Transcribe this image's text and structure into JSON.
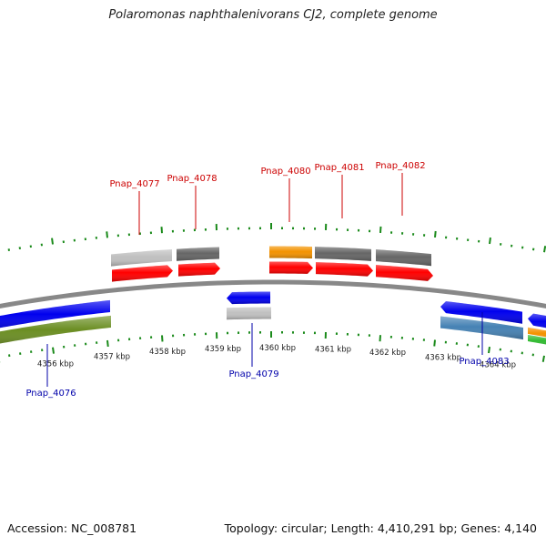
{
  "title": "Polaromonas naphthalenivorans CJ2, complete genome",
  "footer": {
    "accession": "Accession: NC_008781",
    "topology": "Topology: circular; Length: 4,410,291 bp; Genes: 4,140"
  },
  "colors": {
    "backbone": "#888888",
    "tick": "#1a8a1a",
    "label_forward": "#cc0000",
    "label_reverse": "#0000aa",
    "red": "#ff0000",
    "gray_dark": "#666666",
    "gray_light": "#c0c0c0",
    "orange": "#f39200",
    "blue": "#0000ee",
    "steel_blue": "#4682b4",
    "olive": "#6b8e23",
    "green": "#33bb33"
  },
  "axis_labels": [
    "4356 kbp",
    "4357 kbp",
    "4358 kbp",
    "4359 kbp",
    "4360 kbp",
    "4361 kbp",
    "4362 kbp",
    "4363 kbp",
    "4364 kbp"
  ],
  "gene_labels": [
    {
      "text": "Pnap_4077",
      "strand": "forward"
    },
    {
      "text": "Pnap_4078",
      "strand": "forward"
    },
    {
      "text": "Pnap_4080",
      "strand": "forward"
    },
    {
      "text": "Pnap_4081",
      "strand": "forward"
    },
    {
      "text": "Pnap_4082",
      "strand": "forward"
    },
    {
      "text": "Pnap_4076",
      "strand": "reverse"
    },
    {
      "text": "Pnap_4079",
      "strand": "reverse"
    },
    {
      "text": "Pnap_4083",
      "strand": "reverse"
    }
  ],
  "features": [
    {
      "name": "fwd-inner-1",
      "ring": "forward-inner",
      "color": "red",
      "arrow": "right"
    },
    {
      "name": "fwd-inner-2",
      "ring": "forward-inner",
      "color": "red",
      "arrow": "right"
    },
    {
      "name": "fwd-inner-3",
      "ring": "forward-inner",
      "color": "red",
      "arrow": "right"
    },
    {
      "name": "fwd-inner-4",
      "ring": "forward-inner",
      "color": "red",
      "arrow": "right"
    },
    {
      "name": "fwd-inner-5",
      "ring": "forward-inner",
      "color": "red",
      "arrow": "right"
    },
    {
      "name": "fwd-outer-1",
      "ring": "forward-outer",
      "color": "gray_light"
    },
    {
      "name": "fwd-outer-2",
      "ring": "forward-outer",
      "color": "gray_dark"
    },
    {
      "name": "fwd-outer-3",
      "ring": "forward-outer",
      "color": "orange"
    },
    {
      "name": "fwd-outer-4",
      "ring": "forward-outer",
      "color": "gray_dark"
    },
    {
      "name": "fwd-outer-5",
      "ring": "forward-outer",
      "color": "gray_dark"
    },
    {
      "name": "rev-inner-1",
      "ring": "reverse-inner",
      "color": "blue"
    },
    {
      "name": "rev-inner-2",
      "ring": "reverse-inner",
      "color": "blue",
      "arrow": "left"
    },
    {
      "name": "rev-inner-3",
      "ring": "reverse-inner",
      "color": "blue",
      "arrow": "left"
    },
    {
      "name": "rev-inner-4",
      "ring": "reverse-inner",
      "color": "blue",
      "arrow": "left"
    },
    {
      "name": "rev-outer-1",
      "ring": "reverse-outer",
      "color": "olive"
    },
    {
      "name": "rev-outer-2",
      "ring": "reverse-outer",
      "color": "gray_light"
    },
    {
      "name": "rev-outer-3",
      "ring": "reverse-outer",
      "color": "steel_blue"
    },
    {
      "name": "rev-outer-4",
      "ring": "reverse-outer",
      "color": "orange"
    },
    {
      "name": "rev-outer-5",
      "ring": "reverse-outer",
      "color": "green"
    }
  ]
}
